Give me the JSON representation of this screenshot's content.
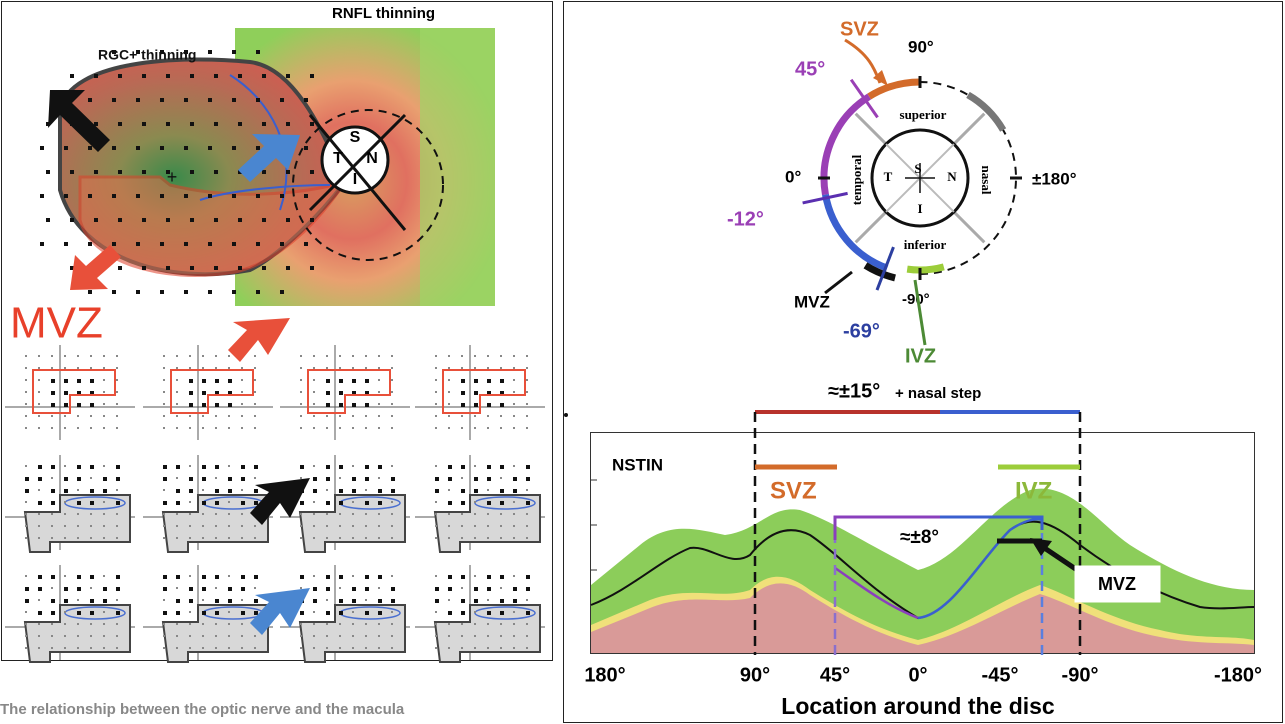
{
  "left_panel": {
    "rnfl_label": "RNFL thinning",
    "rgc_label": "RGC+ thinning",
    "disc": {
      "superior": "S",
      "temporal": "T",
      "nasal": "N",
      "inferior": "I"
    },
    "zone_label": "MVZ",
    "caption": "The relationship between the optic nerve and the macula"
  },
  "right_panel": {
    "polar": {
      "svz": "SVZ",
      "deg_90": "90°",
      "deg_45": "45°",
      "deg_0": "0°",
      "deg_180": "±180°",
      "deg_minus_12": "-12°",
      "deg_minus_69": "-69°",
      "deg_minus_90": "-90°",
      "mvz": "MVZ",
      "ivz": "IVZ",
      "superior": "superior",
      "temporal": "temporal",
      "nasal": "nasal",
      "inferior": "inferior",
      "quadrants": {
        "superior": "S",
        "temporal": "T",
        "nasal": "N",
        "inferior": "I"
      }
    },
    "profile": {
      "range_label": "≈±15°",
      "range_note": "+ nasal step",
      "series_label": "NSTIN",
      "svz": "SVZ",
      "ivz": "IVZ",
      "inner_range": "≈±8°",
      "mvz": "MVZ",
      "x_labels": [
        "180°",
        "90°",
        "45°",
        "0°",
        "-45°",
        "-90°",
        "-180°"
      ],
      "x_title": "Location around the disc"
    }
  }
}
